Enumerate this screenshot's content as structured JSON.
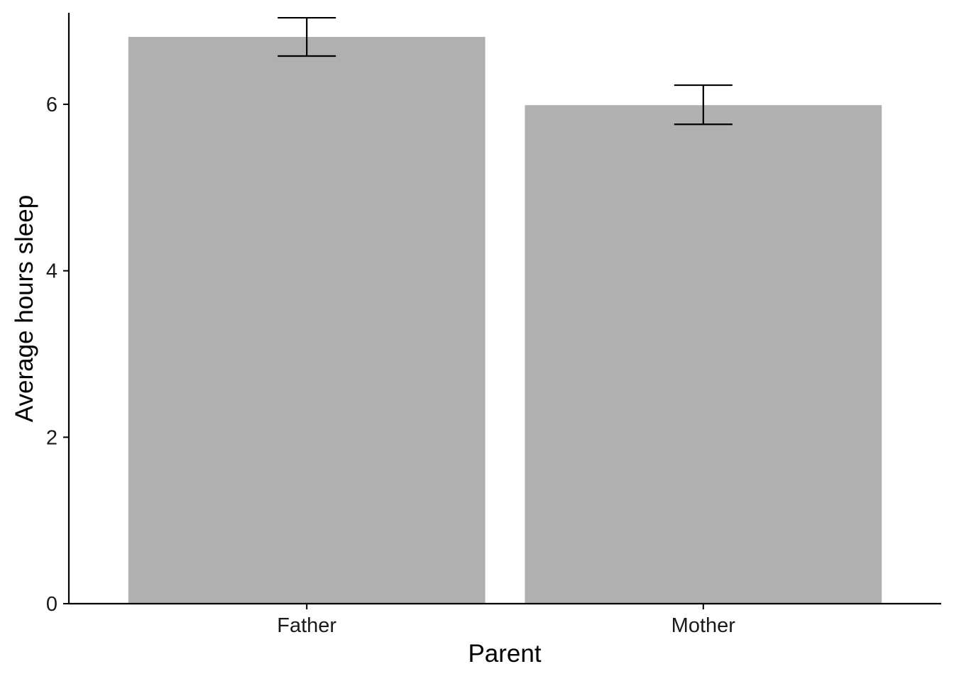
{
  "chart_data": {
    "type": "bar",
    "title": "",
    "xlabel": "Parent",
    "ylabel": "Average hours sleep",
    "categories": [
      "Father",
      "Mother"
    ],
    "values": [
      6.81,
      5.99
    ],
    "error_bars": [
      {
        "low": 6.58,
        "high": 7.04
      },
      {
        "low": 5.76,
        "high": 6.23
      }
    ],
    "ylim": [
      0,
      7.1
    ],
    "yticks": [
      0,
      2,
      4,
      6
    ],
    "ytick_labels": [
      "0",
      "2",
      "4",
      "6"
    ],
    "grid": false,
    "legend": "none",
    "colors": {
      "bar": "#b0b0b0",
      "axis": "#000000",
      "error_bar": "#000000"
    }
  }
}
